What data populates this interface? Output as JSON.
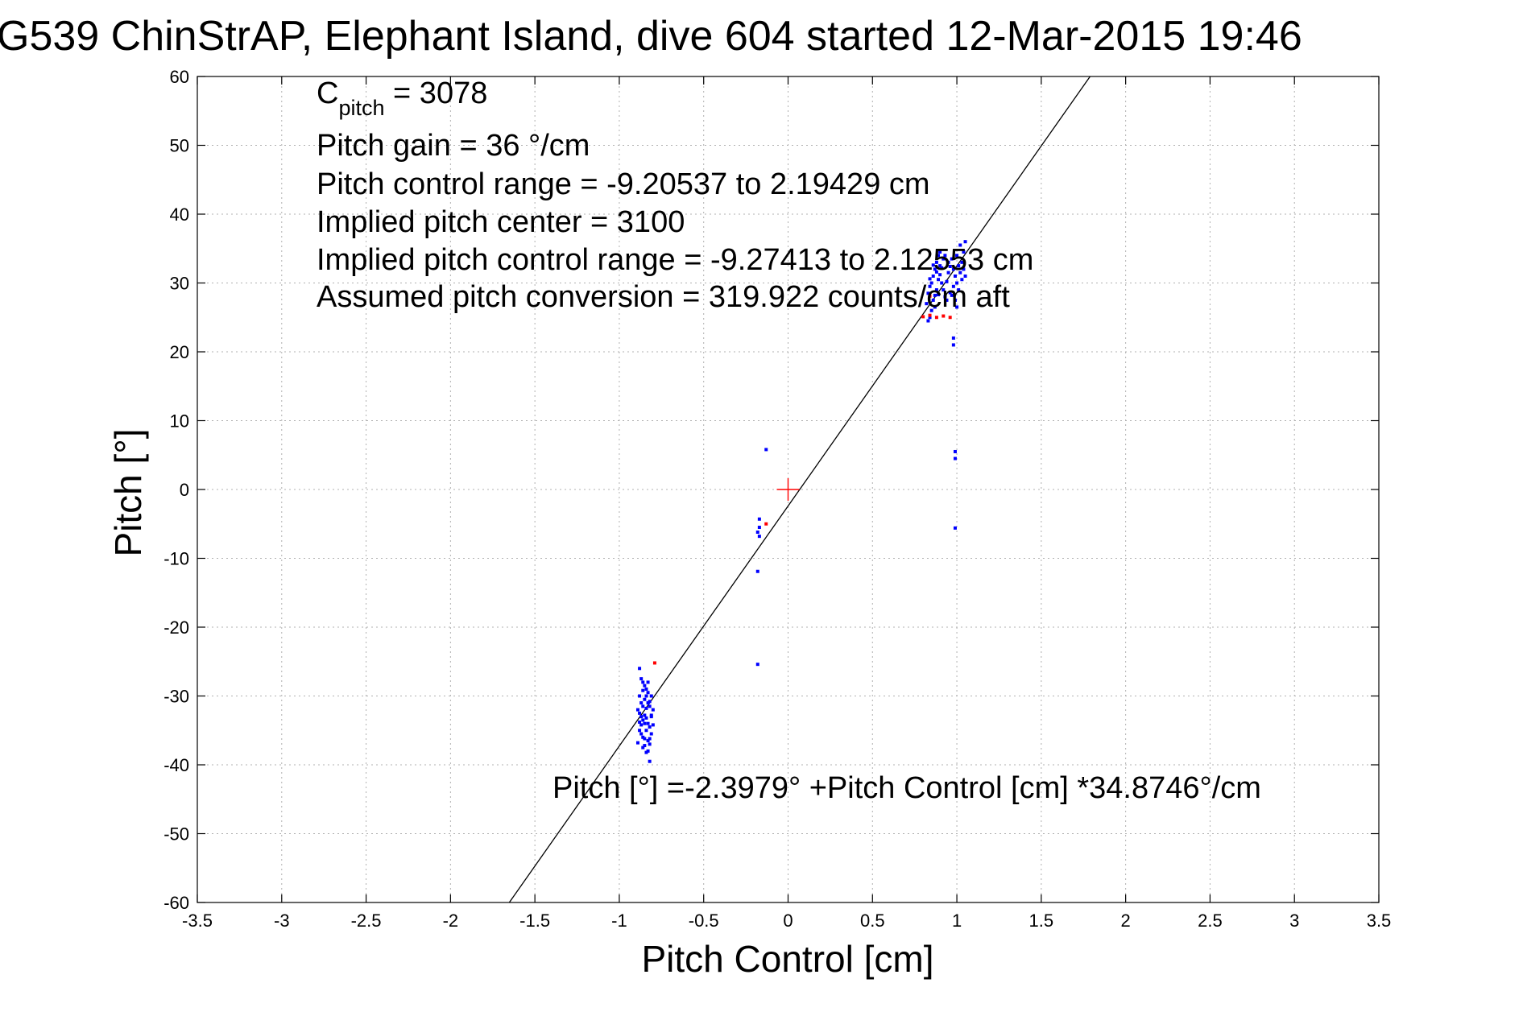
{
  "chart_data": {
    "type": "scatter",
    "title": "G539 ChinStrAP, Elephant Island, dive 604 started 12-Mar-2015 19:46",
    "xlabel": "Pitch Control [cm]",
    "ylabel": "Pitch [°]",
    "xlim": [
      -3.5,
      3.5
    ],
    "ylim": [
      -60,
      60
    ],
    "xticks": [
      -3.5,
      -3,
      -2.5,
      -2,
      -1.5,
      -1,
      -0.5,
      0,
      0.5,
      1,
      1.5,
      2,
      2.5,
      3,
      3.5
    ],
    "xtick_labels": [
      "-3.5",
      "-3",
      "-2.5",
      "-2",
      "-1.5",
      "-1",
      "-0.5",
      "0",
      "0.5",
      "1",
      "1.5",
      "2",
      "2.5",
      "3",
      "3.5"
    ],
    "yticks": [
      60,
      50,
      40,
      30,
      20,
      10,
      0,
      -10,
      -20,
      -30,
      -40,
      -50,
      -60
    ],
    "ytick_labels": [
      "60",
      "50",
      "40",
      "30",
      "20",
      "10",
      "0",
      "-10",
      "-20",
      "-30",
      "-40",
      "-50",
      "-60"
    ],
    "grid": true,
    "annotations": {
      "c_pitch_main": "C",
      "c_pitch_sub": "pitch",
      "c_pitch_value": " = 3078",
      "pitch_gain": "Pitch gain = 36 °/cm",
      "pitch_control_range": "Pitch control range = -9.20537 to 2.19429 cm",
      "implied_pitch_center": "Implied pitch center = 3100",
      "implied_pitch_control_range": "Implied pitch control range = -9.27413 to 2.12553 cm",
      "assumed_pitch_conversion": "Assumed pitch conversion = 319.922 counts/cm aft",
      "fit_equation": "Pitch [°] =-2.3979° +Pitch Control [cm] *34.8746°/cm"
    },
    "fit_line": {
      "intercept": -2.3979,
      "slope": 34.8746,
      "color": "#000000"
    },
    "center_marker": {
      "x": 0,
      "y": 0,
      "color": "#ff0000"
    },
    "series": [
      {
        "color": "#0000ff",
        "points": [
          [
            -0.88,
            -26
          ],
          [
            -0.87,
            -27.5
          ],
          [
            -0.86,
            -28
          ],
          [
            -0.85,
            -28.5
          ],
          [
            -0.84,
            -29
          ],
          [
            -0.83,
            -28
          ],
          [
            -0.88,
            -30
          ],
          [
            -0.87,
            -31
          ],
          [
            -0.86,
            -31.5
          ],
          [
            -0.85,
            -30.5
          ],
          [
            -0.84,
            -30
          ],
          [
            -0.83,
            -31
          ],
          [
            -0.82,
            -31.5
          ],
          [
            -0.81,
            -30
          ],
          [
            -0.8,
            -32
          ],
          [
            -0.89,
            -32
          ],
          [
            -0.88,
            -32.5
          ],
          [
            -0.87,
            -33
          ],
          [
            -0.86,
            -33.5
          ],
          [
            -0.85,
            -32.8
          ],
          [
            -0.84,
            -33.2
          ],
          [
            -0.83,
            -34
          ],
          [
            -0.82,
            -34.5
          ],
          [
            -0.81,
            -33
          ],
          [
            -0.88,
            -35
          ],
          [
            -0.87,
            -35.5
          ],
          [
            -0.86,
            -36
          ],
          [
            -0.85,
            -34
          ],
          [
            -0.84,
            -35
          ],
          [
            -0.83,
            -36.5
          ],
          [
            -0.82,
            -37
          ],
          [
            -0.81,
            -35.5
          ],
          [
            -0.86,
            -37.5
          ],
          [
            -0.83,
            -38
          ],
          [
            -0.82,
            -39.5
          ],
          [
            -0.89,
            -36.8
          ],
          [
            -0.87,
            -34.2
          ],
          [
            -0.85,
            -36.2
          ],
          [
            -0.84,
            -31.8
          ],
          [
            -0.83,
            -29.5
          ],
          [
            -0.82,
            -30.8
          ],
          [
            -0.81,
            -32.8
          ],
          [
            -0.86,
            -29.2
          ],
          [
            -0.88,
            -33.8
          ],
          [
            -0.85,
            -37.2
          ],
          [
            -0.84,
            -38.2
          ],
          [
            -0.82,
            -36.2
          ],
          [
            -0.8,
            -34.2
          ],
          [
            -0.13,
            5.8
          ],
          [
            -0.17,
            -4.3
          ],
          [
            -0.17,
            -5.5
          ],
          [
            -0.18,
            -6.2
          ],
          [
            -0.17,
            -6.8
          ],
          [
            -0.18,
            -11.9
          ],
          [
            -0.18,
            -25.4
          ],
          [
            0.99,
            5.5
          ],
          [
            0.99,
            4.5
          ],
          [
            0.99,
            -5.6
          ],
          [
            0.98,
            22
          ],
          [
            0.98,
            21
          ],
          [
            0.82,
            27
          ],
          [
            0.83,
            28.5
          ],
          [
            0.84,
            29.5
          ],
          [
            0.85,
            30
          ],
          [
            0.86,
            31
          ],
          [
            0.87,
            32
          ],
          [
            0.88,
            33
          ],
          [
            0.89,
            34
          ],
          [
            0.9,
            32.5
          ],
          [
            0.84,
            25
          ],
          [
            0.85,
            26
          ],
          [
            0.86,
            27.5
          ],
          [
            0.87,
            28.2
          ],
          [
            0.88,
            29
          ],
          [
            0.89,
            30.5
          ],
          [
            0.9,
            31.2
          ],
          [
            0.91,
            30
          ],
          [
            0.92,
            29
          ],
          [
            0.93,
            28
          ],
          [
            0.94,
            30.2
          ],
          [
            0.95,
            31.5
          ],
          [
            0.96,
            32.4
          ],
          [
            0.97,
            33.5
          ],
          [
            0.98,
            32
          ],
          [
            0.99,
            31
          ],
          [
            1.0,
            30
          ],
          [
            1.01,
            29
          ],
          [
            1.02,
            31.5
          ],
          [
            1.03,
            33
          ],
          [
            1.04,
            34.5
          ],
          [
            1.05,
            36
          ],
          [
            1.02,
            35.5
          ],
          [
            1.0,
            34
          ],
          [
            0.98,
            29.5
          ],
          [
            0.96,
            28.6
          ],
          [
            0.94,
            27.5
          ],
          [
            0.92,
            33.5
          ],
          [
            0.9,
            34.5
          ],
          [
            0.88,
            31.6
          ],
          [
            0.86,
            32.6
          ],
          [
            0.84,
            30.6
          ],
          [
            1.01,
            32.5
          ],
          [
            1.03,
            30.5
          ],
          [
            1.05,
            31
          ],
          [
            0.99,
            27.5
          ],
          [
            0.97,
            28.2
          ],
          [
            0.95,
            33
          ],
          [
            0.93,
            34
          ],
          [
            0.91,
            32.2
          ],
          [
            0.89,
            28.3
          ],
          [
            0.87,
            26.5
          ],
          [
            1.04,
            32
          ],
          [
            1.0,
            26.5
          ],
          [
            0.83,
            24.5
          ]
        ]
      },
      {
        "color": "#ff0000",
        "points": [
          [
            -0.79,
            -25.2
          ],
          [
            -0.13,
            -5.0
          ],
          [
            0.8,
            25.1
          ],
          [
            0.84,
            25.3
          ],
          [
            0.88,
            25.0
          ],
          [
            0.92,
            25.2
          ],
          [
            0.96,
            25.0
          ],
          [
            0.84,
            28.1
          ]
        ]
      }
    ]
  }
}
